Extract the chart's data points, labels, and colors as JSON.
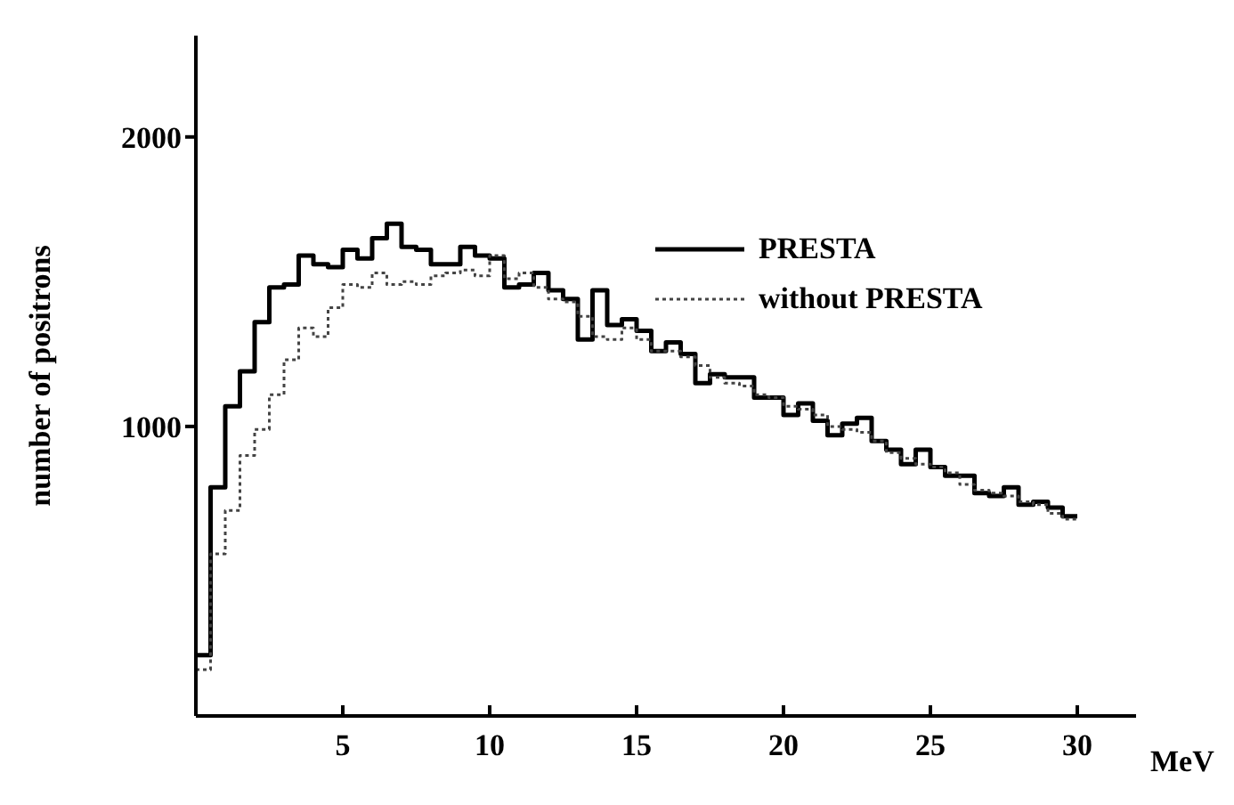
{
  "chart_data": {
    "type": "histogram",
    "xlabel": "MeV",
    "ylabel": "number of positrons",
    "bins": [
      0,
      0.5,
      1,
      1.5,
      2,
      2.5,
      3,
      3.5,
      4,
      4.5,
      5,
      5.5,
      6,
      6.5,
      7,
      7.5,
      8,
      8.5,
      9,
      9.5,
      10,
      10.5,
      11,
      11.5,
      12,
      12.5,
      13,
      13.5,
      14,
      14.5,
      15,
      15.5,
      16,
      16.5,
      17,
      17.5,
      18,
      18.5,
      19,
      19.5,
      20,
      20.5,
      21,
      21.5,
      22,
      22.5,
      23,
      23.5,
      24,
      24.5,
      25,
      25.5,
      26,
      26.5,
      27,
      27.5,
      28,
      28.5,
      29,
      29.5,
      30
    ],
    "series": [
      {
        "name": "PRESTA",
        "color": "#000000",
        "line_style": "solid",
        "values": [
          210,
          790,
          1070,
          1190,
          1360,
          1480,
          1490,
          1590,
          1560,
          1550,
          1610,
          1580,
          1650,
          1700,
          1620,
          1610,
          1560,
          1560,
          1620,
          1590,
          1580,
          1480,
          1490,
          1530,
          1470,
          1440,
          1300,
          1470,
          1350,
          1370,
          1330,
          1260,
          1290,
          1250,
          1150,
          1180,
          1170,
          1170,
          1100,
          1100,
          1040,
          1080,
          1020,
          970,
          1010,
          1030,
          950,
          920,
          870,
          920,
          860,
          830,
          830,
          770,
          760,
          790,
          730,
          740,
          720,
          690
        ]
      },
      {
        "name": "without PRESTA",
        "color": "#444444",
        "line_style": "dotted",
        "values": [
          160,
          560,
          710,
          900,
          990,
          1110,
          1230,
          1340,
          1310,
          1410,
          1490,
          1480,
          1530,
          1490,
          1500,
          1490,
          1520,
          1530,
          1540,
          1520,
          1590,
          1510,
          1530,
          1480,
          1440,
          1430,
          1380,
          1310,
          1300,
          1340,
          1300,
          1260,
          1260,
          1240,
          1210,
          1170,
          1150,
          1140,
          1110,
          1100,
          1070,
          1060,
          1040,
          1000,
          990,
          980,
          950,
          910,
          890,
          870,
          860,
          840,
          800,
          780,
          770,
          760,
          740,
          730,
          700,
          680
        ]
      }
    ],
    "xlim": [
      0,
      32
    ],
    "xticks": [
      5,
      10,
      15,
      20,
      25,
      30
    ],
    "ylim": [
      0,
      2350
    ],
    "yticks": [
      1000,
      2000
    ],
    "grid": false,
    "legend": "top right"
  }
}
